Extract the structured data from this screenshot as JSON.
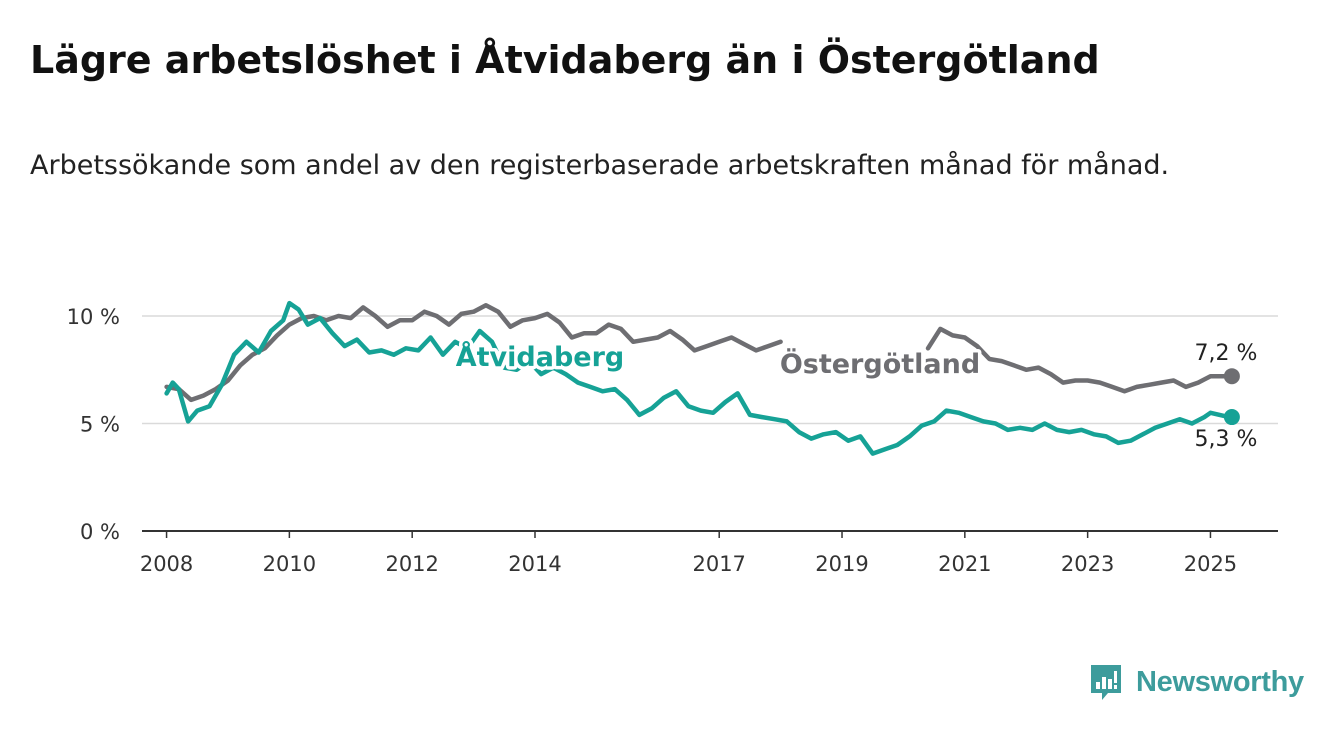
{
  "title": "Lägre arbetslöshet i Åtvidaberg än i Östergötland",
  "subtitle": "Arbetssökande som andel av den registerbaserade arbetskraften månad för månad.",
  "brand": {
    "name": "Newsworthy",
    "color": "#3d9c9c"
  },
  "chart_data": {
    "type": "line",
    "title": "Lägre arbetslöshet i Åtvidaberg än i Östergötland",
    "subtitle": "Arbetssökande som andel av den registerbaserade arbetskraften månad för månad.",
    "xlabel": "",
    "ylabel": "",
    "xlim": [
      2007.6,
      2026.1
    ],
    "ylim": [
      0,
      10
    ],
    "x_ticks": [
      2008,
      2010,
      2012,
      2014,
      2017,
      2019,
      2021,
      2023,
      2025
    ],
    "x_tick_labels": [
      "2008",
      "2010",
      "2012",
      "2014",
      "2017",
      "2019",
      "2021",
      "2023",
      "2025"
    ],
    "y_ticks": [
      0,
      5,
      10
    ],
    "y_tick_labels": [
      "0 %",
      "5 %",
      "10 %"
    ],
    "grid": true,
    "series": [
      {
        "name": "Östergötland",
        "color": "#6e6e72",
        "end_label": "7,2 %",
        "label_position": "inline",
        "segments": [
          [
            [
              2008.0,
              6.7
            ],
            [
              2008.2,
              6.6
            ],
            [
              2008.4,
              6.1
            ],
            [
              2008.6,
              6.3
            ],
            [
              2008.8,
              6.6
            ],
            [
              2009.0,
              7.0
            ],
            [
              2009.2,
              7.7
            ],
            [
              2009.4,
              8.2
            ],
            [
              2009.6,
              8.5
            ],
            [
              2009.8,
              9.1
            ],
            [
              2010.0,
              9.6
            ],
            [
              2010.2,
              9.9
            ],
            [
              2010.4,
              10.0
            ],
            [
              2010.6,
              9.8
            ],
            [
              2010.8,
              10.0
            ],
            [
              2011.0,
              9.9
            ],
            [
              2011.2,
              10.4
            ],
            [
              2011.4,
              10.0
            ],
            [
              2011.6,
              9.5
            ],
            [
              2011.8,
              9.8
            ],
            [
              2012.0,
              9.8
            ],
            [
              2012.2,
              10.2
            ],
            [
              2012.4,
              10.0
            ],
            [
              2012.6,
              9.6
            ],
            [
              2012.8,
              10.1
            ],
            [
              2013.0,
              10.2
            ],
            [
              2013.2,
              10.5
            ],
            [
              2013.4,
              10.2
            ],
            [
              2013.6,
              9.5
            ],
            [
              2013.8,
              9.8
            ],
            [
              2014.0,
              9.9
            ],
            [
              2014.2,
              10.1
            ],
            [
              2014.4,
              9.7
            ],
            [
              2014.6,
              9.0
            ],
            [
              2014.8,
              9.2
            ],
            [
              2015.0,
              9.2
            ],
            [
              2015.2,
              9.6
            ],
            [
              2015.4,
              9.4
            ],
            [
              2015.6,
              8.8
            ],
            [
              2015.8,
              8.9
            ],
            [
              2016.0,
              9.0
            ],
            [
              2016.2,
              9.3
            ],
            [
              2016.4,
              8.9
            ],
            [
              2016.6,
              8.4
            ],
            [
              2016.8,
              8.6
            ],
            [
              2017.0,
              8.8
            ],
            [
              2017.2,
              9.0
            ],
            [
              2017.4,
              8.7
            ],
            [
              2017.6,
              8.4
            ],
            [
              2017.8,
              8.6
            ],
            [
              2018.0,
              8.8
            ]
          ],
          [
            [
              2020.4,
              8.5
            ],
            [
              2020.6,
              9.4
            ],
            [
              2020.8,
              9.1
            ],
            [
              2021.0,
              9.0
            ],
            [
              2021.2,
              8.6
            ],
            [
              2021.4,
              8.0
            ],
            [
              2021.6,
              7.9
            ],
            [
              2021.8,
              7.7
            ],
            [
              2022.0,
              7.5
            ],
            [
              2022.2,
              7.6
            ],
            [
              2022.4,
              7.3
            ],
            [
              2022.6,
              6.9
            ],
            [
              2022.8,
              7.0
            ],
            [
              2023.0,
              7.0
            ],
            [
              2023.2,
              6.9
            ],
            [
              2023.4,
              6.7
            ],
            [
              2023.6,
              6.5
            ],
            [
              2023.8,
              6.7
            ],
            [
              2024.0,
              6.8
            ],
            [
              2024.2,
              6.9
            ],
            [
              2024.4,
              7.0
            ],
            [
              2024.6,
              6.7
            ],
            [
              2024.8,
              6.9
            ],
            [
              2025.0,
              7.2
            ],
            [
              2025.3,
              7.2
            ]
          ]
        ]
      },
      {
        "name": "Åtvidaberg",
        "color": "#16a296",
        "end_label": "5,3 %",
        "label_position": "inline",
        "segments": [
          [
            [
              2008.0,
              6.4
            ],
            [
              2008.1,
              6.9
            ],
            [
              2008.2,
              6.6
            ],
            [
              2008.35,
              5.1
            ],
            [
              2008.5,
              5.6
            ],
            [
              2008.7,
              5.8
            ],
            [
              2008.9,
              6.8
            ],
            [
              2009.1,
              8.2
            ],
            [
              2009.3,
              8.8
            ],
            [
              2009.5,
              8.3
            ],
            [
              2009.7,
              9.3
            ],
            [
              2009.9,
              9.8
            ],
            [
              2010.0,
              10.6
            ],
            [
              2010.15,
              10.3
            ],
            [
              2010.3,
              9.6
            ],
            [
              2010.5,
              9.9
            ],
            [
              2010.7,
              9.2
            ],
            [
              2010.9,
              8.6
            ],
            [
              2011.1,
              8.9
            ],
            [
              2011.3,
              8.3
            ],
            [
              2011.5,
              8.4
            ],
            [
              2011.7,
              8.2
            ],
            [
              2011.9,
              8.5
            ],
            [
              2012.1,
              8.4
            ],
            [
              2012.3,
              9.0
            ],
            [
              2012.5,
              8.2
            ],
            [
              2012.7,
              8.8
            ],
            [
              2012.9,
              8.5
            ],
            [
              2013.1,
              9.3
            ],
            [
              2013.3,
              8.8
            ],
            [
              2013.5,
              7.6
            ],
            [
              2013.7,
              7.5
            ],
            [
              2013.9,
              7.9
            ],
            [
              2014.1,
              7.3
            ],
            [
              2014.3,
              7.6
            ],
            [
              2014.5,
              7.3
            ],
            [
              2014.7,
              6.9
            ],
            [
              2014.9,
              6.7
            ],
            [
              2015.1,
              6.5
            ],
            [
              2015.3,
              6.6
            ],
            [
              2015.5,
              6.1
            ],
            [
              2015.7,
              5.4
            ],
            [
              2015.9,
              5.7
            ],
            [
              2016.1,
              6.2
            ],
            [
              2016.3,
              6.5
            ],
            [
              2016.5,
              5.8
            ],
            [
              2016.7,
              5.6
            ],
            [
              2016.9,
              5.5
            ],
            [
              2017.1,
              6.0
            ],
            [
              2017.3,
              6.4
            ],
            [
              2017.5,
              5.4
            ],
            [
              2017.7,
              5.3
            ],
            [
              2017.9,
              5.2
            ],
            [
              2018.1,
              5.1
            ],
            [
              2018.3,
              4.6
            ],
            [
              2018.5,
              4.3
            ],
            [
              2018.7,
              4.5
            ],
            [
              2018.9,
              4.6
            ],
            [
              2019.1,
              4.2
            ],
            [
              2019.3,
              4.4
            ],
            [
              2019.5,
              3.6
            ],
            [
              2019.7,
              3.8
            ],
            [
              2019.9,
              4.0
            ],
            [
              2020.1,
              4.4
            ],
            [
              2020.3,
              4.9
            ],
            [
              2020.5,
              5.1
            ],
            [
              2020.7,
              5.6
            ],
            [
              2020.9,
              5.5
            ],
            [
              2021.1,
              5.3
            ],
            [
              2021.3,
              5.1
            ],
            [
              2021.5,
              5.0
            ],
            [
              2021.7,
              4.7
            ],
            [
              2021.9,
              4.8
            ],
            [
              2022.1,
              4.7
            ],
            [
              2022.3,
              5.0
            ],
            [
              2022.5,
              4.7
            ],
            [
              2022.7,
              4.6
            ],
            [
              2022.9,
              4.7
            ],
            [
              2023.1,
              4.5
            ],
            [
              2023.3,
              4.4
            ],
            [
              2023.5,
              4.1
            ],
            [
              2023.7,
              4.2
            ],
            [
              2023.9,
              4.5
            ],
            [
              2024.1,
              4.8
            ],
            [
              2024.3,
              5.0
            ],
            [
              2024.5,
              5.2
            ],
            [
              2024.7,
              5.0
            ],
            [
              2024.9,
              5.3
            ],
            [
              2025.0,
              5.5
            ],
            [
              2025.15,
              5.4
            ],
            [
              2025.3,
              5.3
            ]
          ]
        ]
      }
    ]
  }
}
